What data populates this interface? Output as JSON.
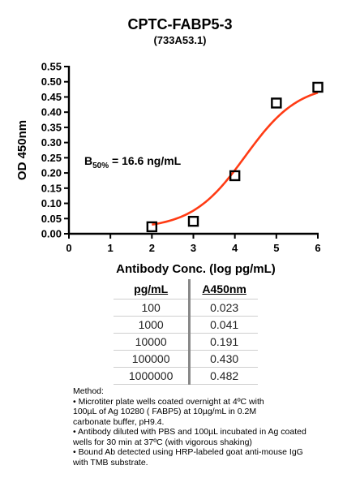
{
  "title": "CPTC-FABP5-3",
  "subtitle": "(733A53.1)",
  "chart_data": {
    "type": "scatter",
    "xlabel": "Antibody Conc. (log pg/mL)",
    "ylabel": "OD 450nm",
    "xlim": [
      0,
      6
    ],
    "ylim": [
      0,
      0.55
    ],
    "x_ticks": [
      "0",
      "1",
      "2",
      "3",
      "4",
      "5",
      "6"
    ],
    "y_ticks": [
      "0.00",
      "0.05",
      "0.10",
      "0.15",
      "0.20",
      "0.25",
      "0.30",
      "0.35",
      "0.40",
      "0.45",
      "0.50",
      "0.55"
    ],
    "series": [
      {
        "marker": "open-square",
        "x": [
          2,
          3,
          4,
          5,
          6
        ],
        "y": [
          0.023,
          0.041,
          0.191,
          0.43,
          0.482
        ]
      }
    ],
    "fit": {
      "type": "sigmoidal",
      "color": "#ff3b14"
    },
    "annotation": {
      "prefix": "B",
      "subscript": "50%",
      "text": " = 16.6 ng/mL"
    },
    "grid": false,
    "legend": "none"
  },
  "table": {
    "headers": [
      "pg/mL",
      "A450nm"
    ],
    "rows": [
      [
        "100",
        "0.023"
      ],
      [
        "1000",
        "0.041"
      ],
      [
        "10000",
        "0.191"
      ],
      [
        "100000",
        "0.430"
      ],
      [
        "1000000",
        "0.482"
      ]
    ]
  },
  "method": {
    "heading": "Method:",
    "lines": [
      "• Microtiter plate wells coated overnight at 4ºC  with",
      "100µL of Ag 10280 ( FABP5) at 10µg/mL in 0.2M",
      "carbonate buffer, pH9.4.",
      "• Antibody diluted with PBS and 100µL incubated in Ag coated",
      "wells for 30 min at 37ºC (with vigorous shaking)",
      "• Bound Ab detected using HRP-labeled goat anti-mouse IgG",
      "with TMB substrate."
    ]
  }
}
